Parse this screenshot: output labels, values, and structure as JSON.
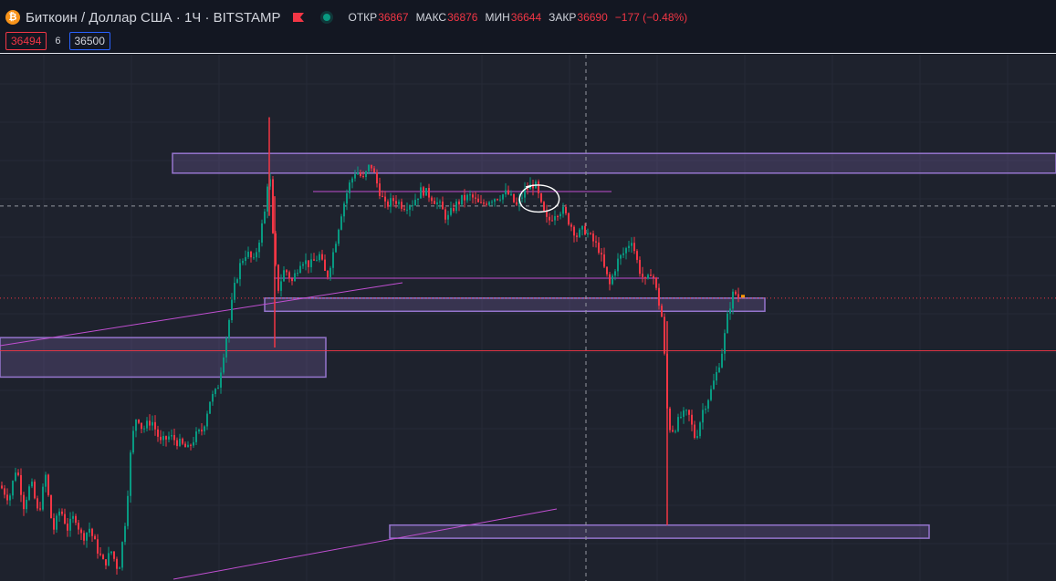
{
  "header": {
    "icon_glyph": "₿",
    "title": "Биткоин / Доллар США · 1Ч · BITSTAMP",
    "ohlc": {
      "open_label": "ОТКР",
      "open": "36867",
      "high_label": "МАКС",
      "high": "36876",
      "low_label": "МИН",
      "low": "36644",
      "close_label": "ЗАКР",
      "close": "36690",
      "change": "−177 (−0.48%)"
    },
    "bid": "36494",
    "spread": "6",
    "ask": "36500"
  },
  "colors": {
    "background": "#1e222d",
    "header_bg": "#131722",
    "up": "#089981",
    "down": "#f23645",
    "zone": "#9575cd",
    "trendline": "#c04fd1"
  },
  "icons": [
    "bitcoin-icon",
    "flag-icon",
    "market-status-dot-icon"
  ],
  "chart_data": {
    "type": "candlestick",
    "symbol": "BTCUSD",
    "exchange": "BITSTAMP",
    "timeframe": "1H",
    "last_close": 36690,
    "path": [
      [
        0,
        36120
      ],
      [
        10,
        36080
      ],
      [
        18,
        36180
      ],
      [
        26,
        36060
      ],
      [
        34,
        36130
      ],
      [
        42,
        36030
      ],
      [
        50,
        36150
      ],
      [
        58,
        35980
      ],
      [
        66,
        36050
      ],
      [
        74,
        35990
      ],
      [
        82,
        36030
      ],
      [
        90,
        35960
      ],
      [
        98,
        35990
      ],
      [
        106,
        35930
      ],
      [
        114,
        35880
      ],
      [
        122,
        35920
      ],
      [
        130,
        35860
      ],
      [
        138,
        36030
      ],
      [
        144,
        36250
      ],
      [
        150,
        36340
      ],
      [
        156,
        36290
      ],
      [
        166,
        36320
      ],
      [
        176,
        36250
      ],
      [
        186,
        36270
      ],
      [
        196,
        36250
      ],
      [
        206,
        36230
      ],
      [
        214,
        36270
      ],
      [
        222,
        36290
      ],
      [
        230,
        36380
      ],
      [
        238,
        36410
      ],
      [
        246,
        36540
      ],
      [
        252,
        36640
      ],
      [
        258,
        36740
      ],
      [
        264,
        36800
      ],
      [
        270,
        36830
      ],
      [
        278,
        36800
      ],
      [
        284,
        36870
      ],
      [
        290,
        36950
      ],
      [
        295,
        37100
      ],
      [
        300,
        36820
      ],
      [
        305,
        36720
      ],
      [
        312,
        36780
      ],
      [
        320,
        36740
      ],
      [
        330,
        36810
      ],
      [
        340,
        36790
      ],
      [
        350,
        36820
      ],
      [
        358,
        36750
      ],
      [
        366,
        36840
      ],
      [
        374,
        36950
      ],
      [
        382,
        37030
      ],
      [
        390,
        37080
      ],
      [
        398,
        37050
      ],
      [
        406,
        37100
      ],
      [
        414,
        37030
      ],
      [
        422,
        36970
      ],
      [
        432,
        36990
      ],
      [
        442,
        36970
      ],
      [
        452,
        36980
      ],
      [
        462,
        37020
      ],
      [
        472,
        37000
      ],
      [
        482,
        36970
      ],
      [
        490,
        36930
      ],
      [
        498,
        36970
      ],
      [
        506,
        36990
      ],
      [
        516,
        37000
      ],
      [
        526,
        36970
      ],
      [
        536,
        36990
      ],
      [
        546,
        37000
      ],
      [
        556,
        37010
      ],
      [
        566,
        36970
      ],
      [
        576,
        37020
      ],
      [
        586,
        37040
      ],
      [
        594,
        36960
      ],
      [
        600,
        36920
      ],
      [
        608,
        36950
      ],
      [
        616,
        36960
      ],
      [
        624,
        36920
      ],
      [
        632,
        36880
      ],
      [
        640,
        36900
      ],
      [
        648,
        36870
      ],
      [
        656,
        36840
      ],
      [
        662,
        36780
      ],
      [
        668,
        36730
      ],
      [
        676,
        36800
      ],
      [
        684,
        36830
      ],
      [
        692,
        36870
      ],
      [
        700,
        36780
      ],
      [
        708,
        36730
      ],
      [
        714,
        36780
      ],
      [
        720,
        36700
      ],
      [
        726,
        36620
      ],
      [
        732,
        36300
      ],
      [
        738,
        36290
      ],
      [
        746,
        36330
      ],
      [
        754,
        36340
      ],
      [
        762,
        36260
      ],
      [
        770,
        36350
      ],
      [
        778,
        36400
      ],
      [
        786,
        36470
      ],
      [
        792,
        36540
      ],
      [
        798,
        36650
      ],
      [
        804,
        36710
      ],
      [
        810,
        36690
      ]
    ]
  },
  "annotations": {
    "horizontal_levels": [
      {
        "name": "crosshair-horizontal-line",
        "price": 36970,
        "style": "dashed"
      },
      {
        "name": "current-price-line",
        "price": 36690,
        "style": "dotted"
      },
      {
        "name": "red-level-line",
        "price": 36530,
        "style": "solid"
      }
    ],
    "zones": [
      {
        "name": "resistance-zone-top",
        "price_high": 37130,
        "price_low": 37070
      },
      {
        "name": "support-zone-mid",
        "price_high": 36690,
        "price_low": 36650
      },
      {
        "name": "support-zone-left",
        "price_high": 36570,
        "price_low": 36450
      },
      {
        "name": "support-zone-bottom",
        "price_high": 36000,
        "price_low": 35960
      }
    ]
  }
}
